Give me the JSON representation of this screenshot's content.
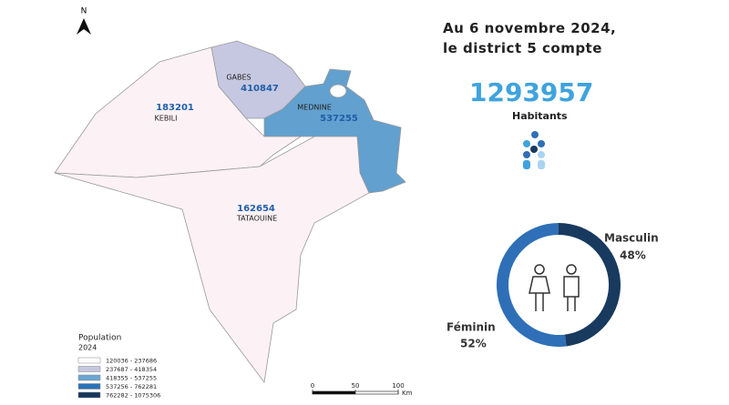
{
  "north": "N",
  "regions": [
    {
      "name": "GABES",
      "population": 410847,
      "color": "#c6c7e1"
    },
    {
      "name": "MEDNINE",
      "population": 537255,
      "color": "#62a0cf"
    },
    {
      "name": "KEBILI",
      "population": 183201,
      "color": "#fcf1f5"
    },
    {
      "name": "TATAOUINE",
      "population": 162654,
      "color": "#fcf1f5"
    }
  ],
  "headline": "Au 6 novembre 2024, le district 5 compte",
  "total": 1293957,
  "total_unit": "Habitants",
  "gender": [
    {
      "label": "Masculin",
      "value": 48,
      "value_label": "48%",
      "color": "#183a5f"
    },
    {
      "label": "Féminin",
      "value": 52,
      "value_label": "52%",
      "color": "#2f6fb7"
    }
  ],
  "legend": {
    "title": "Population",
    "year": "2024",
    "classes": [
      {
        "label": "120036 - 237686",
        "color": "#ffffff"
      },
      {
        "label": "237687 - 418354",
        "color": "#c6c7e1"
      },
      {
        "label": "418355 - 537255",
        "color": "#6aa6d3"
      },
      {
        "label": "537256 - 762281",
        "color": "#2a73b8"
      },
      {
        "label": "762282 - 1075306",
        "color": "#14375e"
      }
    ]
  },
  "scale": {
    "ticks": [
      0,
      50,
      100
    ],
    "unit": "Km"
  }
}
